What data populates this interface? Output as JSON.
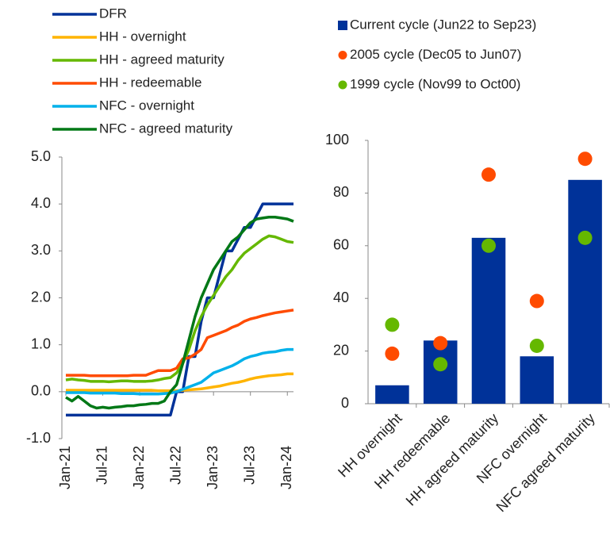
{
  "chart_data": [
    {
      "type": "line",
      "categories": [
        "Jan-21",
        null,
        null,
        null,
        null,
        null,
        "Jul-21",
        null,
        null,
        null,
        null,
        null,
        "Jan-22",
        null,
        null,
        null,
        null,
        null,
        "Jul-22",
        null,
        null,
        null,
        null,
        null,
        "Jan-23",
        null,
        null,
        null,
        null,
        null,
        "Jul-23",
        null,
        null,
        null,
        null,
        null,
        "Jan-24",
        null
      ],
      "ylim": [
        -1,
        5
      ],
      "yticks": [
        {
          "value": -1,
          "label": "-1.0"
        },
        {
          "value": 0,
          "label": "0.0"
        },
        {
          "value": 1,
          "label": "1.0"
        },
        {
          "value": 2,
          "label": "2.0"
        },
        {
          "value": 3,
          "label": "3.0"
        },
        {
          "value": 4,
          "label": "4.0"
        },
        {
          "value": 5,
          "label": "5.0"
        }
      ],
      "series": [
        {
          "name": "DFR",
          "color": "#003299",
          "values": [
            -0.5,
            -0.5,
            -0.5,
            -0.5,
            -0.5,
            -0.5,
            -0.5,
            -0.5,
            -0.5,
            -0.5,
            -0.5,
            -0.5,
            -0.5,
            -0.5,
            -0.5,
            -0.5,
            -0.5,
            -0.5,
            0,
            0,
            0.75,
            0.75,
            1.5,
            2.0,
            2.0,
            2.5,
            3.0,
            3.0,
            3.25,
            3.5,
            3.5,
            3.75,
            4.0,
            4.0,
            4.0,
            4.0,
            4.0,
            4.0
          ]
        },
        {
          "name": "HH - overnight",
          "color": "#ffb400",
          "values": [
            0.03,
            0.03,
            0.03,
            0.03,
            0.03,
            0.03,
            0.03,
            0.03,
            0.03,
            0.03,
            0.03,
            0.03,
            0.03,
            0.03,
            0.03,
            0.02,
            0.02,
            0.02,
            0.02,
            0.03,
            0.04,
            0.05,
            0.06,
            0.08,
            0.1,
            0.12,
            0.15,
            0.18,
            0.2,
            0.23,
            0.27,
            0.3,
            0.32,
            0.34,
            0.35,
            0.36,
            0.38,
            0.38
          ]
        },
        {
          "name": "HH - agreed maturity",
          "color": "#65b800",
          "values": [
            0.25,
            0.27,
            0.25,
            0.24,
            0.22,
            0.22,
            0.22,
            0.21,
            0.22,
            0.23,
            0.23,
            0.22,
            0.22,
            0.22,
            0.23,
            0.25,
            0.28,
            0.3,
            0.4,
            0.6,
            0.9,
            1.3,
            1.6,
            1.85,
            2.05,
            2.25,
            2.45,
            2.6,
            2.8,
            2.95,
            3.05,
            3.15,
            3.25,
            3.32,
            3.3,
            3.25,
            3.2,
            3.18
          ]
        },
        {
          "name": "HH - redeemable",
          "color": "#ff4b00",
          "values": [
            0.35,
            0.35,
            0.35,
            0.35,
            0.34,
            0.34,
            0.34,
            0.34,
            0.34,
            0.34,
            0.34,
            0.35,
            0.35,
            0.35,
            0.4,
            0.45,
            0.45,
            0.45,
            0.5,
            0.7,
            0.72,
            0.8,
            0.9,
            1.15,
            1.2,
            1.25,
            1.3,
            1.37,
            1.42,
            1.5,
            1.55,
            1.58,
            1.62,
            1.65,
            1.68,
            1.7,
            1.72,
            1.74
          ]
        },
        {
          "name": "NFC - overnight",
          "color": "#00b1ea",
          "values": [
            -0.02,
            -0.02,
            -0.02,
            -0.02,
            -0.03,
            -0.03,
            -0.03,
            -0.03,
            -0.03,
            -0.04,
            -0.04,
            -0.04,
            -0.05,
            -0.05,
            -0.05,
            -0.05,
            -0.04,
            -0.03,
            0.0,
            0.05,
            0.1,
            0.15,
            0.2,
            0.3,
            0.4,
            0.45,
            0.5,
            0.55,
            0.62,
            0.7,
            0.75,
            0.78,
            0.82,
            0.84,
            0.85,
            0.88,
            0.9,
            0.9
          ]
        },
        {
          "name": "NFC - agreed maturity",
          "color": "#007816",
          "values": [
            -0.12,
            -0.2,
            -0.1,
            -0.2,
            -0.3,
            -0.35,
            -0.33,
            -0.35,
            -0.33,
            -0.32,
            -0.3,
            -0.3,
            -0.28,
            -0.27,
            -0.25,
            -0.25,
            -0.2,
            0.0,
            0.15,
            0.6,
            1.1,
            1.6,
            2.0,
            2.3,
            2.6,
            2.8,
            3.0,
            3.2,
            3.3,
            3.45,
            3.6,
            3.68,
            3.7,
            3.72,
            3.72,
            3.7,
            3.68,
            3.63
          ]
        }
      ]
    },
    {
      "type": "bar",
      "categories": [
        "HH overnight",
        "HH redeemable",
        "HH agreed maturity",
        "NFC overnight",
        "NFC agreed maturity"
      ],
      "ylim": [
        0,
        100
      ],
      "yticks": [
        0,
        20,
        40,
        60,
        80,
        100
      ],
      "series": [
        {
          "name": "Current cycle (Jun22 to Sep23)",
          "type": "bar",
          "color": "#003299",
          "values": [
            7,
            24,
            63,
            18,
            85
          ]
        },
        {
          "name": "2005 cycle (Dec05 to Jun07)",
          "type": "dot",
          "color": "#ff4b00",
          "values": [
            19,
            23,
            87,
            39,
            93
          ]
        },
        {
          "name": "1999 cycle (Nov99 to Oct00)",
          "type": "dot",
          "color": "#65b800",
          "values": [
            30,
            15,
            60,
            22,
            63
          ]
        }
      ]
    }
  ]
}
